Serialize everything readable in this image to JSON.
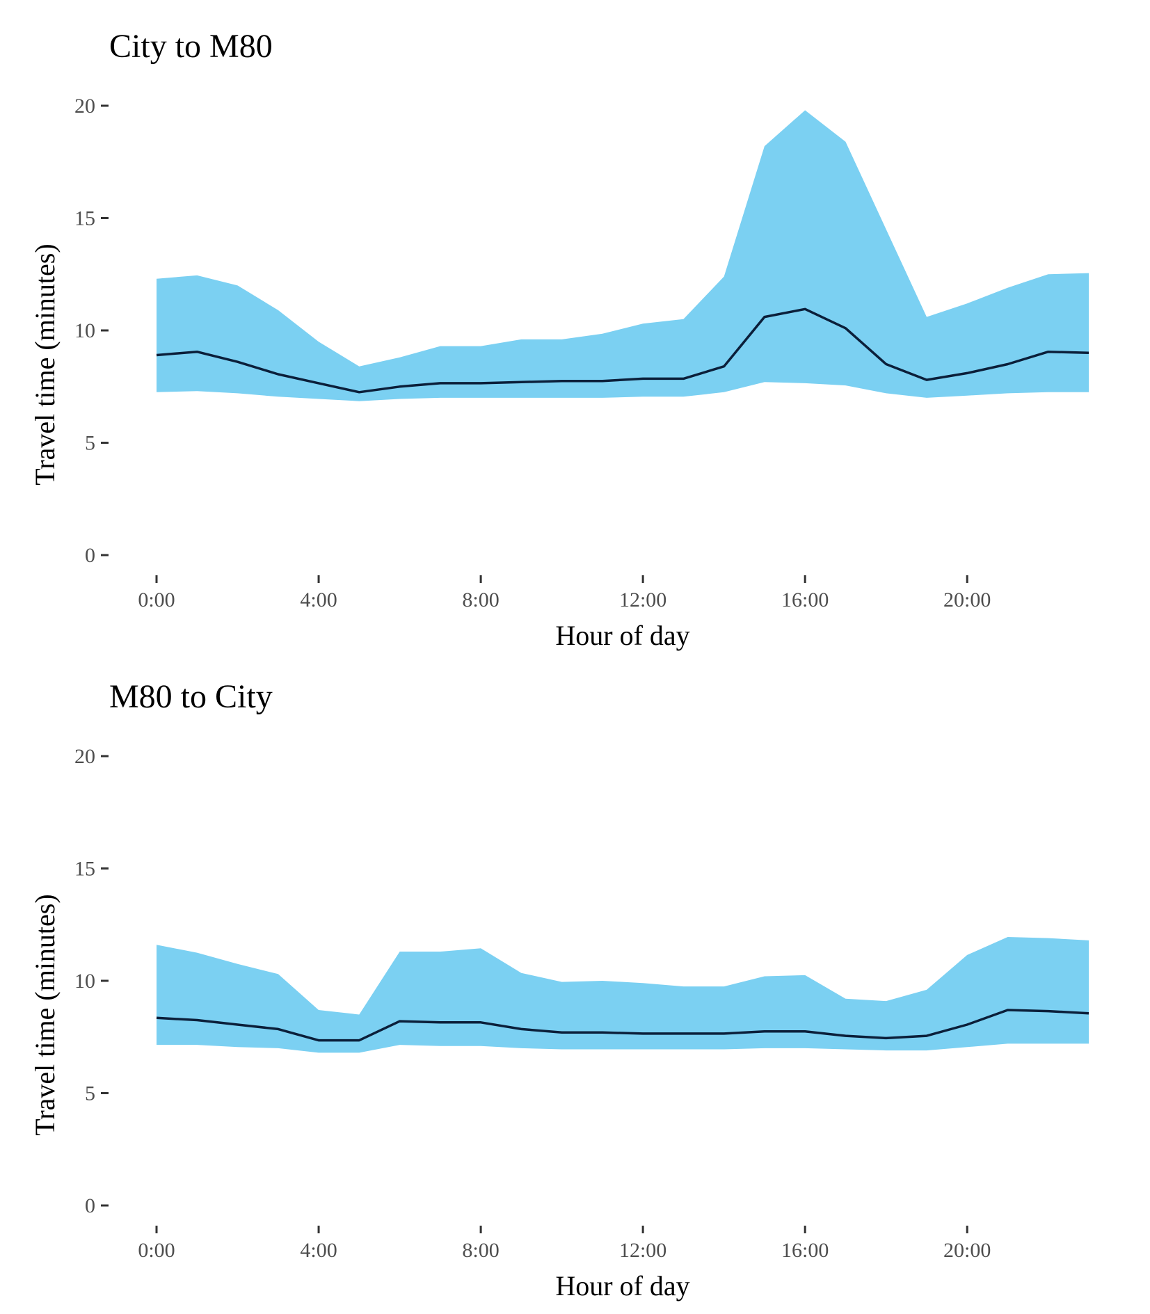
{
  "colors": {
    "ribbon": "#7bd0f2",
    "line": "#0b1f3a",
    "tick_text": "#4d4d4d"
  },
  "chart_data": [
    {
      "type": "area",
      "title": "City to M80",
      "xlabel": "Hour of day",
      "ylabel": "Travel time (minutes)",
      "xlim": [
        0,
        23
      ],
      "ylim": [
        0,
        20
      ],
      "x_ticks": [
        0,
        4,
        8,
        12,
        16,
        20
      ],
      "x_tick_labels": [
        "0:00",
        "4:00",
        "8:00",
        "12:00",
        "16:00",
        "20:00"
      ],
      "y_ticks": [
        0,
        5,
        10,
        15,
        20
      ],
      "y_tick_labels": [
        "0",
        "5",
        "10",
        "15",
        "20"
      ],
      "grid": false,
      "legend": "none",
      "x": [
        0,
        1,
        2,
        3,
        4,
        5,
        6,
        7,
        8,
        9,
        10,
        11,
        12,
        13,
        14,
        15,
        16,
        17,
        18,
        19,
        20,
        21,
        22,
        23
      ],
      "series": [
        {
          "role": "upper",
          "values": [
            12.3,
            12.45,
            12.0,
            10.9,
            9.5,
            8.4,
            8.8,
            9.3,
            9.3,
            9.6,
            9.6,
            9.85,
            10.3,
            10.5,
            12.4,
            18.2,
            19.8,
            18.4,
            14.5,
            10.6,
            11.2,
            11.9,
            12.5,
            12.55
          ]
        },
        {
          "role": "median",
          "values": [
            8.9,
            9.05,
            8.6,
            8.05,
            7.65,
            7.25,
            7.5,
            7.65,
            7.65,
            7.7,
            7.75,
            7.75,
            7.85,
            7.85,
            8.4,
            10.6,
            10.95,
            10.1,
            8.5,
            7.8,
            8.1,
            8.5,
            9.05,
            9.0
          ]
        },
        {
          "role": "lower",
          "values": [
            7.25,
            7.3,
            7.2,
            7.05,
            6.95,
            6.85,
            6.95,
            7.0,
            7.0,
            7.0,
            7.0,
            7.0,
            7.05,
            7.05,
            7.25,
            7.7,
            7.65,
            7.55,
            7.2,
            7.0,
            7.1,
            7.2,
            7.25,
            7.25
          ]
        }
      ]
    },
    {
      "type": "area",
      "title": "M80 to City",
      "xlabel": "Hour of day",
      "ylabel": "Travel time (minutes)",
      "xlim": [
        0,
        23
      ],
      "ylim": [
        0,
        20
      ],
      "x_ticks": [
        0,
        4,
        8,
        12,
        16,
        20
      ],
      "x_tick_labels": [
        "0:00",
        "4:00",
        "8:00",
        "12:00",
        "16:00",
        "20:00"
      ],
      "y_ticks": [
        0,
        5,
        10,
        15,
        20
      ],
      "y_tick_labels": [
        "0",
        "5",
        "10",
        "15",
        "20"
      ],
      "grid": false,
      "legend": "none",
      "x": [
        0,
        1,
        2,
        3,
        4,
        5,
        6,
        7,
        8,
        9,
        10,
        11,
        12,
        13,
        14,
        15,
        16,
        17,
        18,
        19,
        20,
        21,
        22,
        23
      ],
      "series": [
        {
          "role": "upper",
          "values": [
            11.6,
            11.25,
            10.75,
            10.3,
            8.7,
            8.5,
            11.3,
            11.3,
            11.45,
            10.35,
            9.95,
            10.0,
            9.9,
            9.75,
            9.75,
            10.2,
            10.25,
            9.2,
            9.1,
            9.6,
            11.15,
            11.95,
            11.9,
            11.8
          ]
        },
        {
          "role": "median",
          "values": [
            8.35,
            8.25,
            8.05,
            7.85,
            7.35,
            7.35,
            8.2,
            8.15,
            8.15,
            7.85,
            7.7,
            7.7,
            7.65,
            7.65,
            7.65,
            7.75,
            7.75,
            7.55,
            7.45,
            7.55,
            8.05,
            8.7,
            8.65,
            8.55
          ]
        },
        {
          "role": "lower",
          "values": [
            7.15,
            7.15,
            7.05,
            7.0,
            6.8,
            6.8,
            7.15,
            7.1,
            7.1,
            7.0,
            6.95,
            6.95,
            6.95,
            6.95,
            6.95,
            7.0,
            7.0,
            6.95,
            6.9,
            6.9,
            7.05,
            7.2,
            7.2,
            7.2
          ]
        }
      ]
    }
  ]
}
